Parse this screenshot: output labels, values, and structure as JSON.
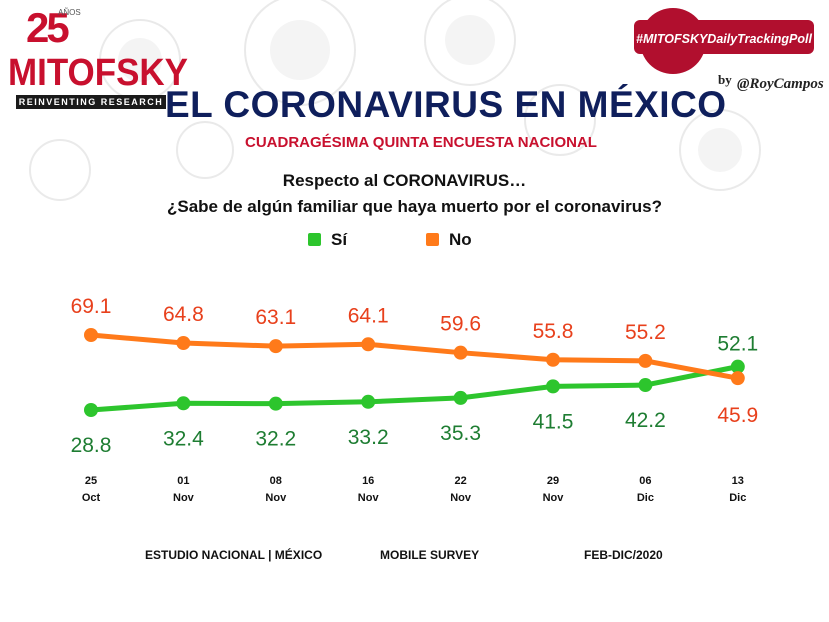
{
  "brand": {
    "years": "25",
    "years_suffix": "AÑOS",
    "name": "MITOFSKY",
    "tagline": "REINVENTING RESEARCH",
    "hashtag": "#MITOFSKYDailyTrackingPoll",
    "by": "by",
    "signature": "@RoyCampos"
  },
  "header": {
    "title": "EL CORONAVIRUS EN MÉXICO",
    "subtitle": "CUADRAGÉSIMA QUINTA ENCUESTA NACIONAL"
  },
  "question": {
    "line1": "Respecto al CORONAVIRUS…",
    "line2": "¿Sabe de algún familiar que haya muerto por el coronavirus?"
  },
  "colors": {
    "si": "#2dc52d",
    "no": "#ff7a1a",
    "si_label": "#1e7d32",
    "no_label": "#e8401c",
    "title": "#0f1f5c",
    "accent": "#c8102e"
  },
  "chart_data": {
    "type": "line",
    "categories": [
      [
        "25",
        "Oct"
      ],
      [
        "01",
        "Nov"
      ],
      [
        "08",
        "Nov"
      ],
      [
        "16",
        "Nov"
      ],
      [
        "22",
        "Nov"
      ],
      [
        "29",
        "Nov"
      ],
      [
        "06",
        "Dic"
      ],
      [
        "13",
        "Dic"
      ]
    ],
    "series": [
      {
        "name": "Sí",
        "values": [
          28.8,
          32.4,
          32.2,
          33.2,
          35.3,
          41.5,
          42.2,
          52.1
        ]
      },
      {
        "name": "No",
        "values": [
          69.1,
          64.8,
          63.1,
          64.1,
          59.6,
          55.8,
          55.2,
          45.9
        ]
      }
    ],
    "data_labels": {
      "Sí": [
        "28.8",
        "32.4",
        "32.2",
        "33.2",
        "35.3",
        "41.5",
        "42.2",
        "52.1"
      ],
      "No": [
        "69.1",
        "64.8",
        "63.1",
        "64.1",
        "59.6",
        "55.8",
        "55.2",
        "45.9"
      ]
    },
    "legend_position": "top-center",
    "grid": false,
    "ylim": [
      20,
      75
    ]
  },
  "footer": {
    "left": "ESTUDIO NACIONAL | MÉXICO",
    "center": "MOBILE SURVEY",
    "right": "FEB-DIC/2020"
  }
}
